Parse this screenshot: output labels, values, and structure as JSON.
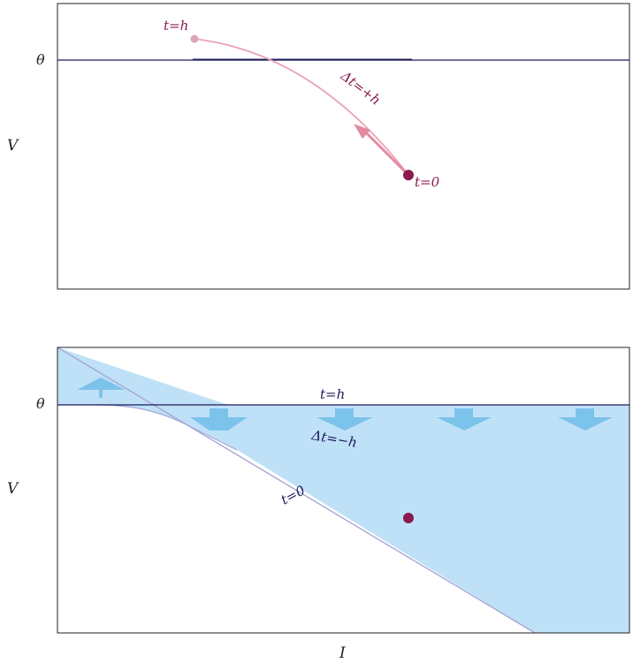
{
  "colors": {
    "frame": "#222222",
    "threshold": "#1c1a5a",
    "trajectory": "#e9a3b4",
    "trajectory_arrow": "#e48aa2",
    "point": "#8b1a4f",
    "point_faded": "#dba4bd",
    "label_magenta": "#8b1a4f",
    "label_navy": "#1c1a5a",
    "region_fill": "#bfe1f7",
    "region_edge": "#a8a6d6",
    "block_arrow": "#7cc3ec"
  },
  "top_panel": {
    "threshold_label": "θ",
    "y_axis_label": "V",
    "label_t_h": "t=h",
    "label_dt": "Δt=+h",
    "label_t0": "t=0"
  },
  "bottom_panel": {
    "threshold_label": "θ",
    "y_axis_label": "V",
    "x_axis_label": "I",
    "label_t_h": "t=h",
    "label_dt": "Δt=−h",
    "label_t0": "t=0"
  }
}
